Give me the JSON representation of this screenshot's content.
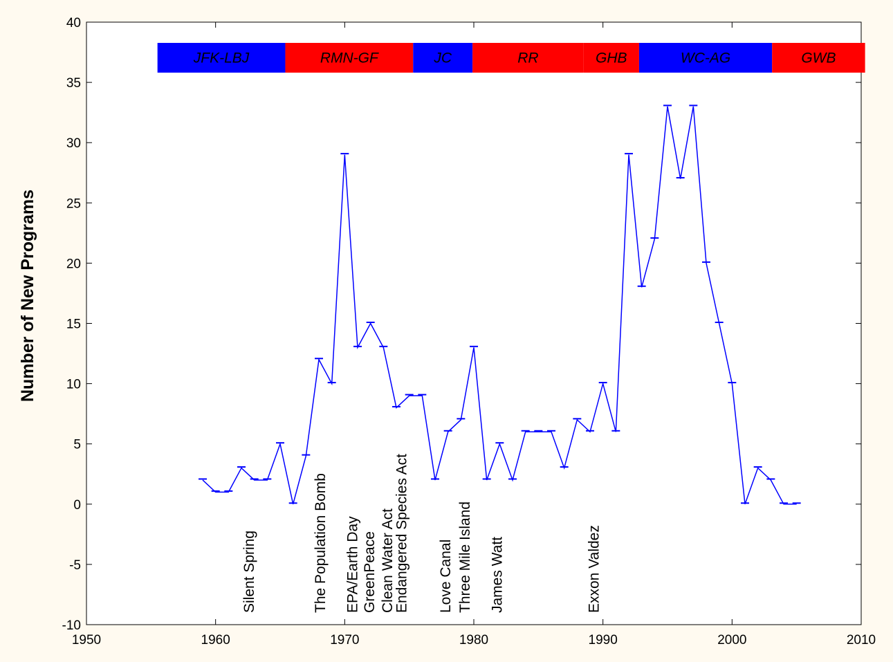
{
  "chart_data": {
    "type": "line",
    "title": "",
    "xlabel": "",
    "ylabel": "Number of New Programs",
    "xlim": [
      1950,
      2010
    ],
    "ylim": [
      -10,
      40
    ],
    "x_ticks": [
      1950,
      1960,
      1970,
      1980,
      1990,
      2000,
      2010
    ],
    "y_ticks": [
      -10,
      -5,
      0,
      5,
      10,
      15,
      20,
      25,
      30,
      35,
      40
    ],
    "grid": false,
    "series": [
      {
        "color": "#0000ff",
        "x": [
          1959,
          1960,
          1961,
          1962,
          1963,
          1964,
          1965,
          1966,
          1967,
          1968,
          1969,
          1970,
          1971,
          1972,
          1973,
          1974,
          1975,
          1976,
          1977,
          1978,
          1979,
          1980,
          1981,
          1982,
          1983,
          1984,
          1985,
          1986,
          1987,
          1988,
          1989,
          1990,
          1991,
          1992,
          1993,
          1994,
          1995,
          1996,
          1997,
          1998,
          1999,
          2000,
          2001,
          2002,
          2003,
          2004,
          2005
        ],
        "y": [
          2,
          1,
          1,
          3,
          2,
          2,
          5,
          0,
          4,
          12,
          10,
          29,
          13,
          15,
          13,
          8,
          9,
          9,
          2,
          6,
          7,
          13,
          2,
          5,
          2,
          6,
          6,
          6,
          3,
          7,
          6,
          10,
          6,
          29,
          18,
          22,
          33,
          27,
          33,
          20,
          15,
          10,
          0,
          3,
          2,
          0,
          0
        ]
      }
    ],
    "administrations": [
      {
        "label": "JFK-LBJ",
        "start": 1955.5,
        "end": 1965.4,
        "color": "#0000ff"
      },
      {
        "label": "RMN-GF",
        "start": 1965.4,
        "end": 1975.3,
        "color": "#ff0000"
      },
      {
        "label": "JC",
        "start": 1975.3,
        "end": 1979.9,
        "color": "#0000ff"
      },
      {
        "label": "RR",
        "start": 1979.9,
        "end": 1988.5,
        "color": "#ff0000"
      },
      {
        "label": "GHB",
        "start": 1988.5,
        "end": 1992.8,
        "color": "#ff0000"
      },
      {
        "label": "WC-AG",
        "start": 1992.8,
        "end": 2003.1,
        "color": "#0000ff"
      },
      {
        "label": "GWB",
        "start": 2003.1,
        "end": 2010.3,
        "color": "#ff0000"
      }
    ],
    "events": [
      {
        "label": "Silent Spring",
        "year": 1962.6
      },
      {
        "label": "The Population Bomb",
        "year": 1968.1
      },
      {
        "label": "EPA/Earth Day",
        "year": 1970.6
      },
      {
        "label": "GreenPeace",
        "year": 1971.9
      },
      {
        "label": "Clean Water Act",
        "year": 1973.3
      },
      {
        "label": "Endangered Species Act",
        "year": 1974.4
      },
      {
        "label": "Love Canal",
        "year": 1977.8
      },
      {
        "label": "Three Mile Island",
        "year": 1979.3
      },
      {
        "label": "James Watt",
        "year": 1981.8
      },
      {
        "label": "Exxon Valdez",
        "year": 1989.3
      }
    ]
  }
}
